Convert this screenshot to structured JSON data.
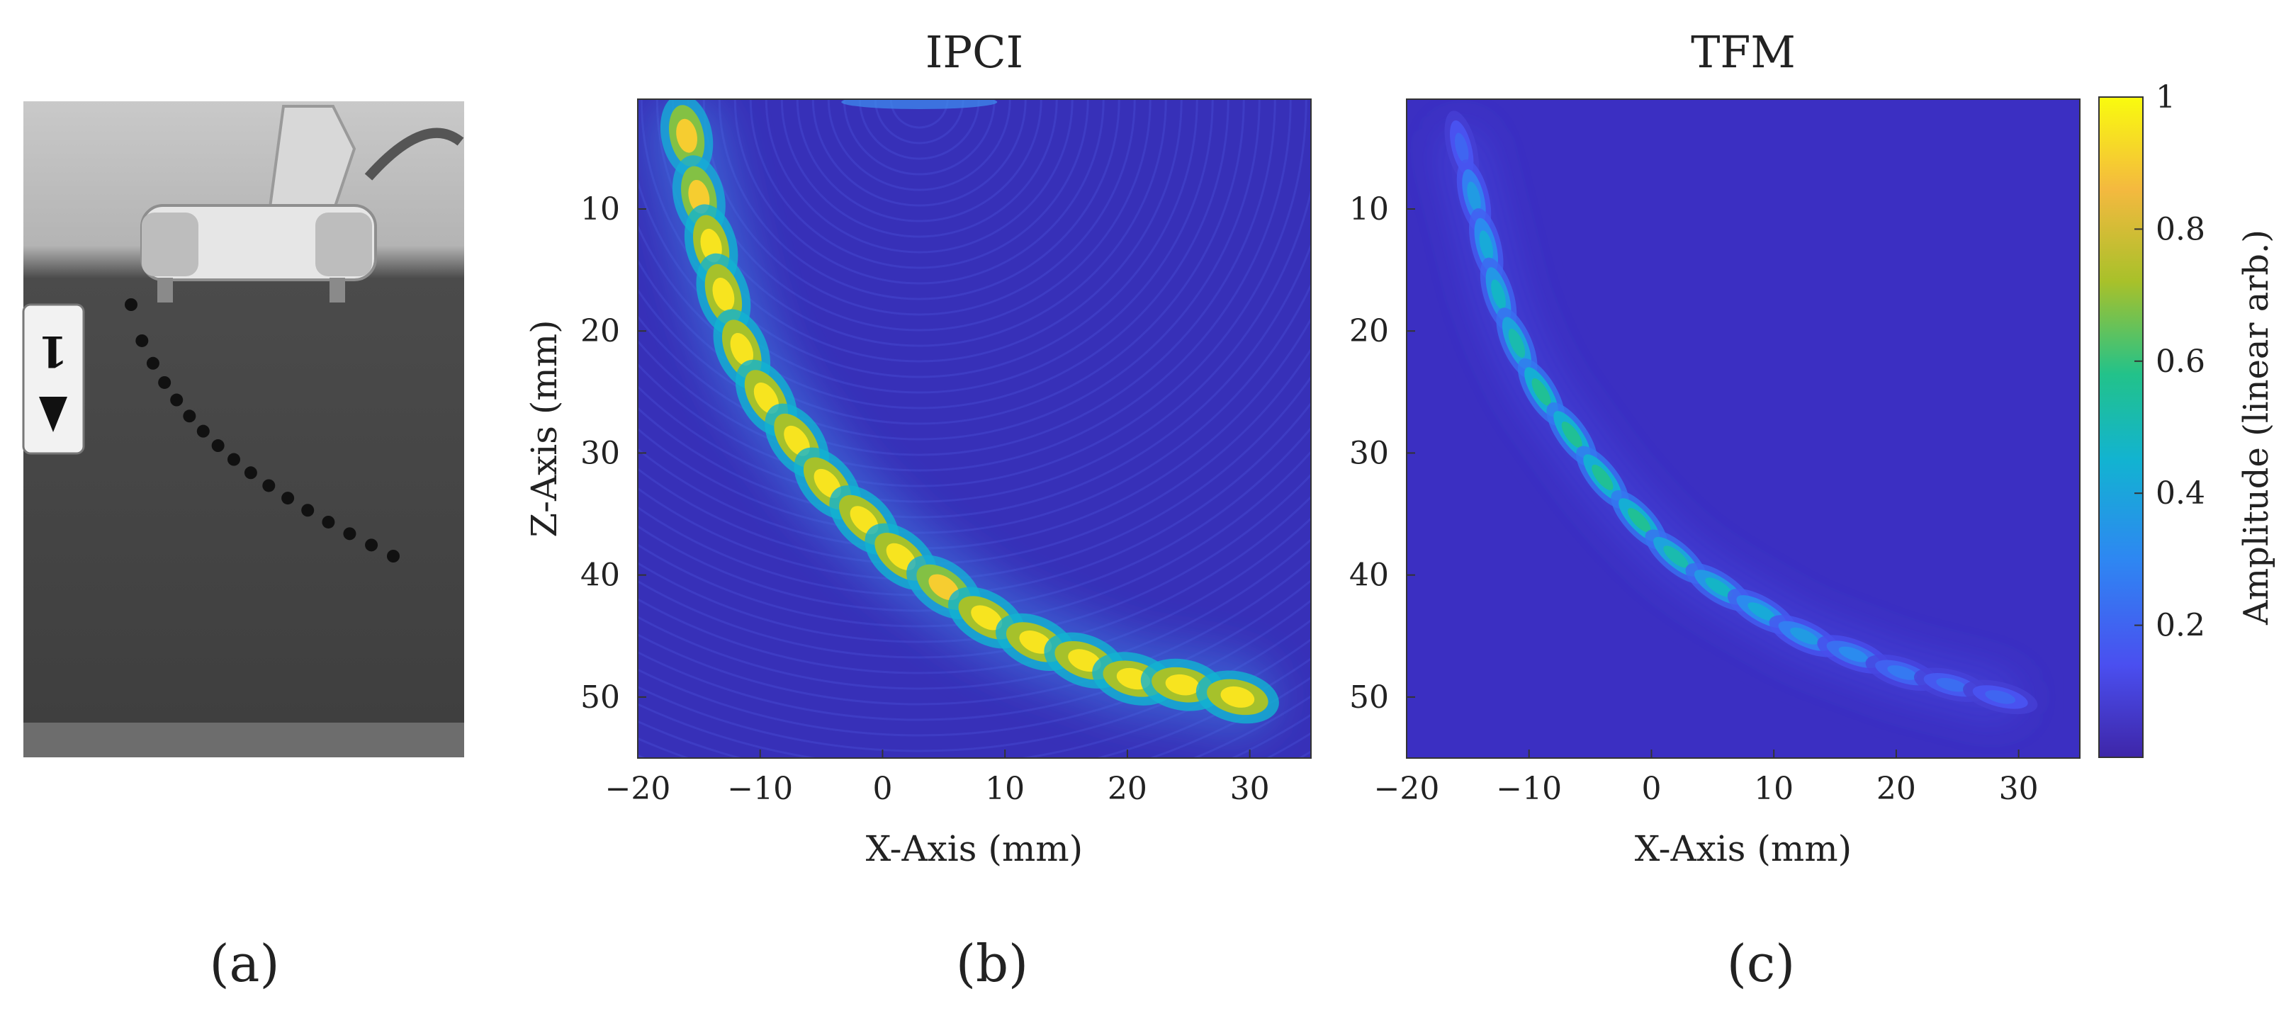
{
  "panel_labels": [
    "(a)",
    "(b)",
    "(c)"
  ],
  "photo": {
    "description_icon": "probe-on-steel-block-photo-icon",
    "label_text": "1"
  },
  "colors": {
    "cmap": [
      "#3E26A8",
      "#4A4FF0",
      "#2E87F2",
      "#12B3D1",
      "#22C28A",
      "#A8C12A",
      "#F4B93F",
      "#F9FB0E"
    ],
    "background_low": "#3A2FC0",
    "axis": "#333333"
  },
  "chart_data": [
    {
      "type": "heatmap",
      "panel": "(b)",
      "title": "IPCI",
      "xlabel": "X-Axis (mm)",
      "ylabel": "Z-Axis (mm)",
      "xlim": [
        -20,
        35
      ],
      "ylim": [
        1,
        55
      ],
      "y_reversed": true,
      "xticks": [
        -20,
        -10,
        0,
        10,
        20,
        30
      ],
      "xtick_labels": [
        "−20",
        "−10",
        "0",
        "10",
        "20",
        "30"
      ],
      "yticks": [
        10,
        20,
        30,
        40,
        50
      ],
      "ytick_labels": [
        "10",
        "20",
        "30",
        "40",
        "50"
      ],
      "reflectors": [
        {
          "x": -16,
          "z": 4,
          "amp": 0.9
        },
        {
          "x": -15,
          "z": 9,
          "amp": 0.9
        },
        {
          "x": -14,
          "z": 13,
          "amp": 0.95
        },
        {
          "x": -13,
          "z": 17,
          "amp": 0.95
        },
        {
          "x": -11.5,
          "z": 21.5,
          "amp": 0.95
        },
        {
          "x": -9.5,
          "z": 25.5,
          "amp": 0.95
        },
        {
          "x": -7,
          "z": 29,
          "amp": 0.95
        },
        {
          "x": -4.5,
          "z": 32.5,
          "amp": 0.95
        },
        {
          "x": -1.5,
          "z": 35.5,
          "amp": 0.95
        },
        {
          "x": 1.5,
          "z": 38.5,
          "amp": 0.95
        },
        {
          "x": 5,
          "z": 41,
          "amp": 0.9
        },
        {
          "x": 8.5,
          "z": 43.5,
          "amp": 0.95
        },
        {
          "x": 12.5,
          "z": 45.5,
          "amp": 0.95
        },
        {
          "x": 16.5,
          "z": 47,
          "amp": 0.95
        },
        {
          "x": 20.5,
          "z": 48.5,
          "amp": 0.95
        },
        {
          "x": 24.5,
          "z": 49,
          "amp": 0.95
        },
        {
          "x": 29,
          "z": 50,
          "amp": 0.95
        }
      ]
    },
    {
      "type": "heatmap",
      "panel": "(c)",
      "title": "TFM",
      "xlabel": "X-Axis (mm)",
      "ylabel": "",
      "xlim": [
        -20,
        35
      ],
      "ylim": [
        1,
        55
      ],
      "y_reversed": true,
      "xticks": [
        -20,
        -10,
        0,
        10,
        20,
        30
      ],
      "xtick_labels": [
        "−20",
        "−10",
        "0",
        "10",
        "20",
        "30"
      ],
      "yticks": [
        10,
        20,
        30,
        40,
        50
      ],
      "ytick_labels": [
        "10",
        "20",
        "30",
        "40",
        "50"
      ],
      "reflectors": [
        {
          "x": -15.5,
          "z": 5,
          "amp": 0.2
        },
        {
          "x": -14.5,
          "z": 9,
          "amp": 0.35
        },
        {
          "x": -13.5,
          "z": 13,
          "amp": 0.4
        },
        {
          "x": -12.5,
          "z": 17,
          "amp": 0.45
        },
        {
          "x": -11,
          "z": 21,
          "amp": 0.5
        },
        {
          "x": -9,
          "z": 25,
          "amp": 0.55
        },
        {
          "x": -6.5,
          "z": 28.5,
          "amp": 0.55
        },
        {
          "x": -4,
          "z": 32,
          "amp": 0.55
        },
        {
          "x": -1,
          "z": 35.5,
          "amp": 0.55
        },
        {
          "x": 2,
          "z": 38.5,
          "amp": 0.5
        },
        {
          "x": 5.5,
          "z": 41,
          "amp": 0.45
        },
        {
          "x": 9,
          "z": 43,
          "amp": 0.4
        },
        {
          "x": 12.5,
          "z": 45,
          "amp": 0.35
        },
        {
          "x": 16.5,
          "z": 46.5,
          "amp": 0.3
        },
        {
          "x": 20.5,
          "z": 48,
          "amp": 0.25
        },
        {
          "x": 24.5,
          "z": 49,
          "amp": 0.22
        },
        {
          "x": 28.5,
          "z": 50,
          "amp": 0.2
        }
      ]
    }
  ],
  "colorbar": {
    "label": "Amplitude (linear arb.)",
    "range": [
      0,
      1
    ],
    "ticks": [
      0.2,
      0.4,
      0.6,
      0.8,
      1
    ],
    "tick_labels": [
      "0.2",
      "0.4",
      "0.6",
      "0.8",
      "1"
    ]
  }
}
